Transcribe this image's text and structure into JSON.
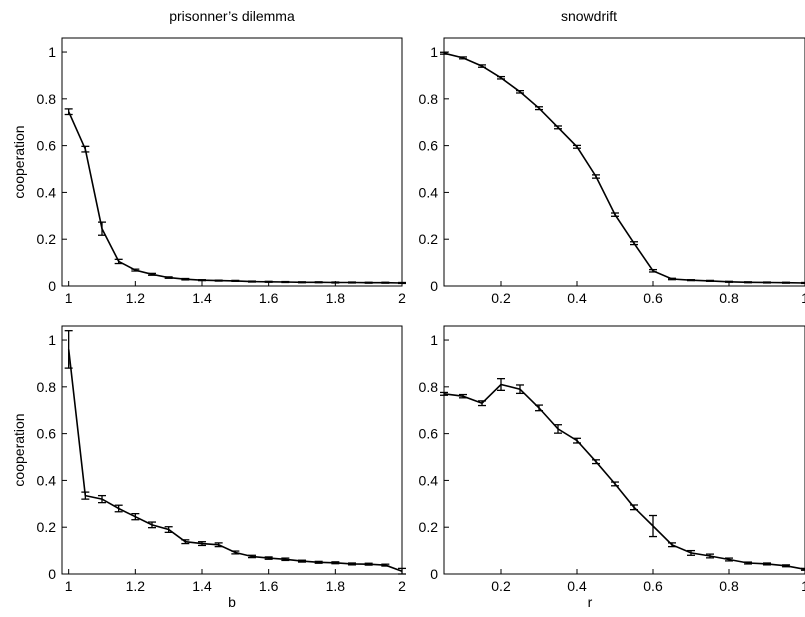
{
  "chart_data": [
    {
      "type": "line",
      "title": "prisonner’s dilemma",
      "xlabel": "",
      "ylabel": "cooperation",
      "xlim": [
        0.98,
        2.0
      ],
      "ylim": [
        0,
        1.06
      ],
      "xticks": [
        "1",
        "1.2",
        "1.4",
        "1.6",
        "1.8",
        "2"
      ],
      "yticks": [
        "0",
        "0.2",
        "0.4",
        "0.6",
        "0.8",
        "1"
      ],
      "grid": false,
      "series": [
        {
          "x": [
            1.0,
            1.05,
            1.1,
            1.15,
            1.2,
            1.25,
            1.3,
            1.35,
            1.4,
            1.45,
            1.5,
            1.55,
            1.6,
            1.65,
            1.7,
            1.75,
            1.8,
            1.85,
            1.9,
            1.95,
            2.0
          ],
          "y": [
            0.745,
            0.585,
            0.245,
            0.105,
            0.068,
            0.05,
            0.036,
            0.029,
            0.025,
            0.023,
            0.022,
            0.019,
            0.018,
            0.017,
            0.016,
            0.016,
            0.015,
            0.015,
            0.014,
            0.014,
            0.013
          ],
          "err": [
            0.012,
            0.012,
            0.028,
            0.009,
            0.004,
            0.004,
            0.003,
            0.003,
            0.002,
            0.002,
            0.002,
            0.002,
            0.002,
            0.002,
            0.002,
            0.002,
            0.002,
            0.002,
            0.002,
            0.002,
            0.002
          ]
        }
      ]
    },
    {
      "type": "line",
      "title": "snowdrift",
      "xlabel": "",
      "ylabel": "",
      "xlim": [
        0.05,
        1.0
      ],
      "ylim": [
        0,
        1.06
      ],
      "xticks": [
        "0.2",
        "0.4",
        "0.6",
        "0.8",
        "1"
      ],
      "yticks": [
        "0",
        "0.2",
        "0.4",
        "0.6",
        "0.8",
        "1"
      ],
      "grid": false,
      "series": [
        {
          "x": [
            0.05,
            0.1,
            0.15,
            0.2,
            0.25,
            0.3,
            0.35,
            0.4,
            0.45,
            0.5,
            0.55,
            0.6,
            0.65,
            0.7,
            0.75,
            0.8,
            0.85,
            0.9,
            0.95,
            1.0
          ],
          "y": [
            0.995,
            0.975,
            0.94,
            0.89,
            0.83,
            0.76,
            0.678,
            0.595,
            0.468,
            0.305,
            0.183,
            0.065,
            0.03,
            0.025,
            0.022,
            0.018,
            0.016,
            0.015,
            0.014,
            0.013
          ],
          "err": [
            0.004,
            0.004,
            0.005,
            0.005,
            0.005,
            0.006,
            0.006,
            0.006,
            0.007,
            0.007,
            0.006,
            0.005,
            0.003,
            0.002,
            0.002,
            0.002,
            0.002,
            0.002,
            0.002,
            0.002
          ]
        }
      ]
    },
    {
      "type": "line",
      "title": "",
      "xlabel": "b",
      "ylabel": "cooperation",
      "xlim": [
        0.98,
        2.0
      ],
      "ylim": [
        0,
        1.06
      ],
      "xticks": [
        "1",
        "1.2",
        "1.4",
        "1.6",
        "1.8",
        "2"
      ],
      "yticks": [
        "0",
        "0.2",
        "0.4",
        "0.6",
        "0.8",
        "1"
      ],
      "grid": false,
      "series": [
        {
          "x": [
            1.0,
            1.05,
            1.1,
            1.15,
            1.2,
            1.25,
            1.3,
            1.35,
            1.4,
            1.45,
            1.5,
            1.55,
            1.6,
            1.65,
            1.7,
            1.75,
            1.8,
            1.85,
            1.9,
            1.95,
            2.0
          ],
          "y": [
            0.96,
            0.335,
            0.32,
            0.28,
            0.245,
            0.21,
            0.19,
            0.138,
            0.13,
            0.125,
            0.092,
            0.075,
            0.068,
            0.063,
            0.055,
            0.05,
            0.048,
            0.043,
            0.042,
            0.038,
            0.012
          ],
          "err": [
            0.08,
            0.015,
            0.015,
            0.014,
            0.013,
            0.012,
            0.012,
            0.008,
            0.008,
            0.008,
            0.006,
            0.005,
            0.005,
            0.005,
            0.004,
            0.004,
            0.004,
            0.004,
            0.004,
            0.004,
            0.012
          ]
        }
      ]
    },
    {
      "type": "line",
      "title": "",
      "xlabel": "r",
      "ylabel": "",
      "xlim": [
        0.05,
        1.0
      ],
      "ylim": [
        0,
        1.06
      ],
      "xticks": [
        "0.2",
        "0.4",
        "0.6",
        "0.8",
        "1"
      ],
      "yticks": [
        "0",
        "0.2",
        "0.4",
        "0.6",
        "0.8",
        "1"
      ],
      "grid": false,
      "series": [
        {
          "x": [
            0.05,
            0.1,
            0.15,
            0.2,
            0.25,
            0.3,
            0.35,
            0.4,
            0.45,
            0.5,
            0.55,
            0.6,
            0.65,
            0.7,
            0.75,
            0.8,
            0.85,
            0.9,
            0.95,
            1.0
          ],
          "y": [
            0.77,
            0.76,
            0.73,
            0.81,
            0.79,
            0.71,
            0.62,
            0.57,
            0.48,
            0.385,
            0.285,
            0.205,
            0.125,
            0.09,
            0.077,
            0.062,
            0.047,
            0.043,
            0.035,
            0.02
          ],
          "err": [
            0.006,
            0.007,
            0.01,
            0.025,
            0.018,
            0.012,
            0.018,
            0.01,
            0.008,
            0.008,
            0.01,
            0.045,
            0.008,
            0.01,
            0.008,
            0.006,
            0.004,
            0.004,
            0.004,
            0.004
          ]
        }
      ]
    }
  ]
}
